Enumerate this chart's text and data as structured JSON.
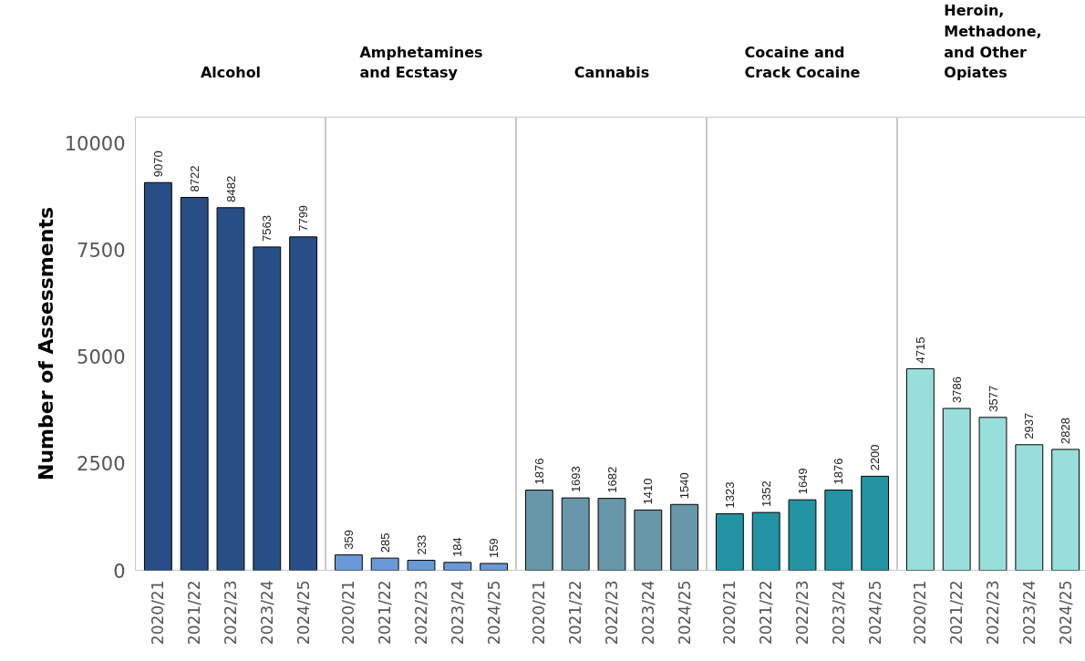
{
  "chart_data": [
    {
      "type": "bar",
      "title": "Alcohol",
      "ylabel": "Number of Assessments",
      "categories": [
        "2020/21",
        "2021/22",
        "2022/23",
        "2023/24",
        "2024/25"
      ],
      "values": [
        9070,
        8722,
        8482,
        7563,
        7799
      ],
      "color": "#284f85",
      "ylim": [
        0,
        10600
      ],
      "yticks": [
        0,
        2500,
        5000,
        7500,
        10000
      ],
      "data_labels": true,
      "grid": false
    },
    {
      "type": "bar",
      "title": "Amphetamines and Ecstasy",
      "categories": [
        "2020/21",
        "2021/22",
        "2022/23",
        "2023/24",
        "2024/25"
      ],
      "values": [
        359,
        285,
        233,
        184,
        159
      ],
      "color": "#6a9ad6",
      "ylim": [
        0,
        10600
      ],
      "tick_labels": "x",
      "data_labels": true,
      "grid": false
    },
    {
      "type": "bar",
      "title": "Cannabis",
      "categories": [
        "2020/21",
        "2021/22",
        "2022/23",
        "2023/24",
        "2024/25"
      ],
      "values": [
        1876,
        1693,
        1682,
        1410,
        1540
      ],
      "color": "#6797a8",
      "ylim": [
        0,
        10600
      ],
      "tick_labels": "x",
      "data_labels": true,
      "grid": false
    },
    {
      "type": "bar",
      "title": "Cocaine and Crack Cocaine",
      "categories": [
        "2020/21",
        "2021/22",
        "2022/23",
        "2023/24",
        "2024/25"
      ],
      "values": [
        1323,
        1352,
        1649,
        1876,
        2200
      ],
      "color": "#2393a3",
      "ylim": [
        0,
        10600
      ],
      "tick_labels": "x",
      "data_labels": true,
      "grid": false
    },
    {
      "type": "bar",
      "title": "Heroin, Methadone, and Other Opiates",
      "categories": [
        "2020/21",
        "2021/22",
        "2022/23",
        "2023/24",
        "2024/25"
      ],
      "values": [
        4715,
        3786,
        3577,
        2937,
        2828
      ],
      "color": "#98dfdb",
      "ylim": [
        0,
        10600
      ],
      "tick_labels": "x",
      "data_labels": true,
      "grid": false
    }
  ]
}
